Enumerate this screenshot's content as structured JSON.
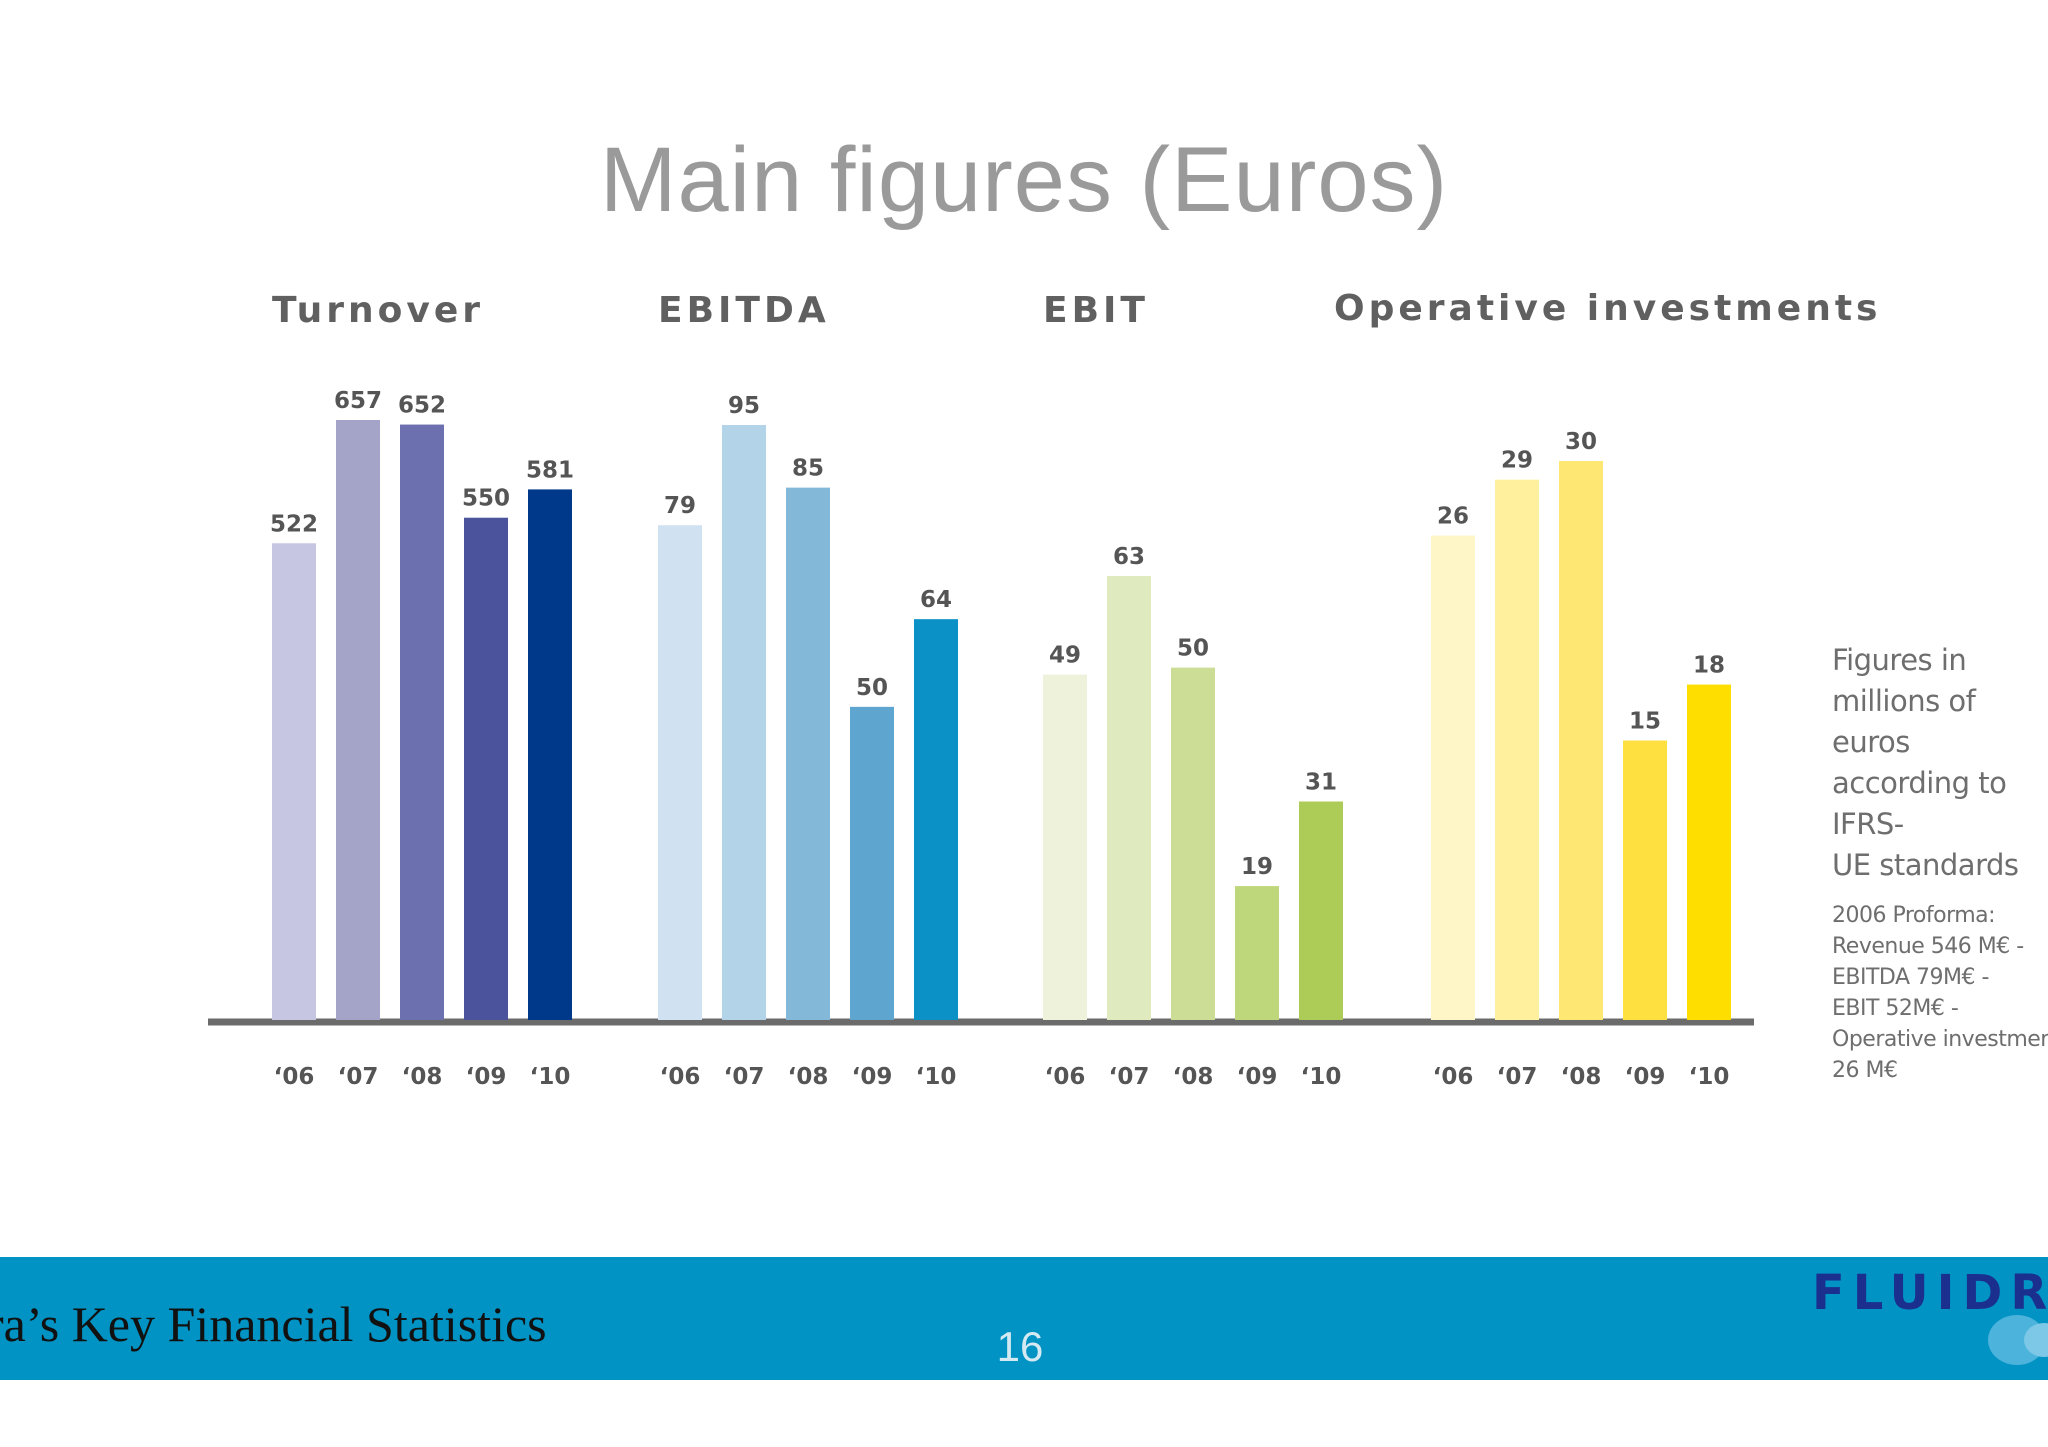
{
  "slide": {
    "title": "Main figures (Euros)",
    "footer_text": "dra’s Key Financial Statistics",
    "page_number": "16",
    "logo_text": "FLUIDR",
    "note_main": [
      "Figures in",
      "millions of euros",
      "according to IFRS-",
      "UE standards"
    ],
    "note_detail": [
      "2006 Proforma:",
      "Revenue 546 M€ -",
      "EBITDA 79M€ -",
      "EBIT 52M€ -",
      "Operative investments",
      "26 M€"
    ]
  },
  "chart_data": [
    {
      "type": "bar",
      "title": "Turnover",
      "categories": [
        "‘06",
        "‘07",
        "‘08",
        "‘09",
        "‘10"
      ],
      "values": [
        522,
        657,
        652,
        550,
        581
      ],
      "colors": [
        "#c6c6e2",
        "#a4a4c8",
        "#6d70ae",
        "#4b539d",
        "#00398a"
      ]
    },
    {
      "type": "bar",
      "title": "EBITDA",
      "categories": [
        "‘06",
        "‘07",
        "‘08",
        "‘09",
        "‘10"
      ],
      "values": [
        79,
        95,
        85,
        50,
        64
      ],
      "colors": [
        "#d0e2f2",
        "#b3d3e8",
        "#83b8d8",
        "#5ea6cf",
        "#0c91c6"
      ]
    },
    {
      "type": "bar",
      "title": "EBIT",
      "categories": [
        "‘06",
        "‘07",
        "‘08",
        "‘09",
        "‘10"
      ],
      "values": [
        49,
        63,
        50,
        19,
        31
      ],
      "colors": [
        "#eff2db",
        "#dfeabe",
        "#ccdd96",
        "#bfd77b",
        "#adcb57"
      ]
    },
    {
      "type": "bar",
      "title": "Operative investments",
      "categories": [
        "‘06",
        "‘07",
        "‘08",
        "‘09",
        "‘10"
      ],
      "values": [
        26,
        29,
        30,
        15,
        18
      ],
      "colors": [
        "#fff6c8",
        "#fff09d",
        "#fee773",
        "#fee140",
        "#fedd00"
      ]
    }
  ],
  "colors": {
    "axis": "#6b6b6b",
    "value_label": "#555555",
    "group_title": "#606060",
    "footer_band": "#0093c3"
  }
}
